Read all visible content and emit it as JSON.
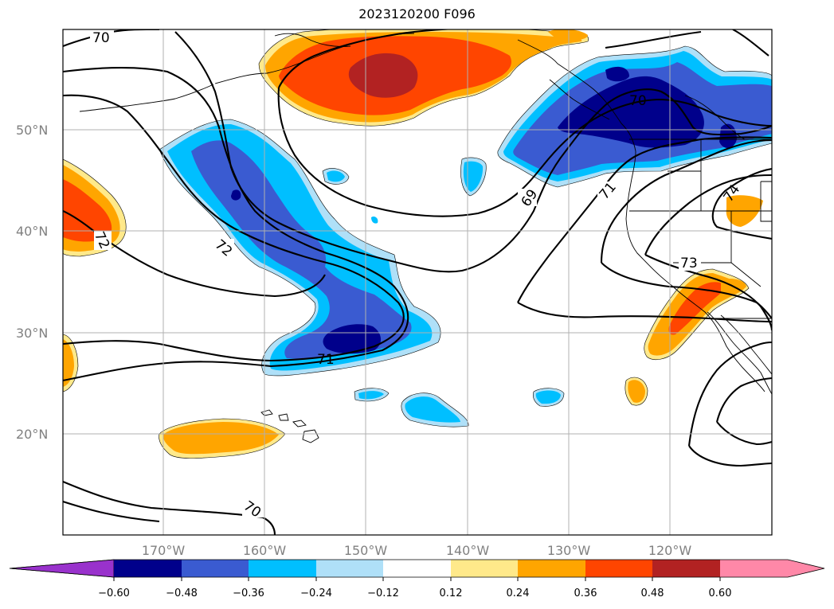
{
  "title": "2023120200 F096",
  "latitude_labels": [
    "50°N",
    "40°N",
    "30°N",
    "20°N"
  ],
  "longitude_labels": [
    "170°W",
    "160°W",
    "150°W",
    "140°W",
    "130°W",
    "120°W"
  ],
  "contour_labels": [
    "70",
    "72",
    "71",
    "69",
    "71",
    "70",
    "73",
    "74",
    "72",
    "70"
  ],
  "colorbar": {
    "tick_labels": [
      "−0.60",
      "−0.48",
      "−0.36",
      "−0.24",
      "−0.12",
      "0.12",
      "0.24",
      "0.36",
      "0.48",
      "0.60"
    ],
    "colors": [
      "#9932cc",
      "#00008b",
      "#3a5bd1",
      "#00bfff",
      "#afe0f8",
      "#ffffff",
      "#ffe98a",
      "#ffa500",
      "#ff4500",
      "#b22222",
      "#ff88a8"
    ]
  },
  "shading_colors": {
    "light_blue": "#afe0f8",
    "blue": "#00bfff",
    "mid_blue": "#3a5bd1",
    "navy": "#00008b",
    "yellow": "#ffe98a",
    "orange": "#ffa500",
    "red_orange": "#ff4500",
    "dark_red": "#b22222"
  }
}
